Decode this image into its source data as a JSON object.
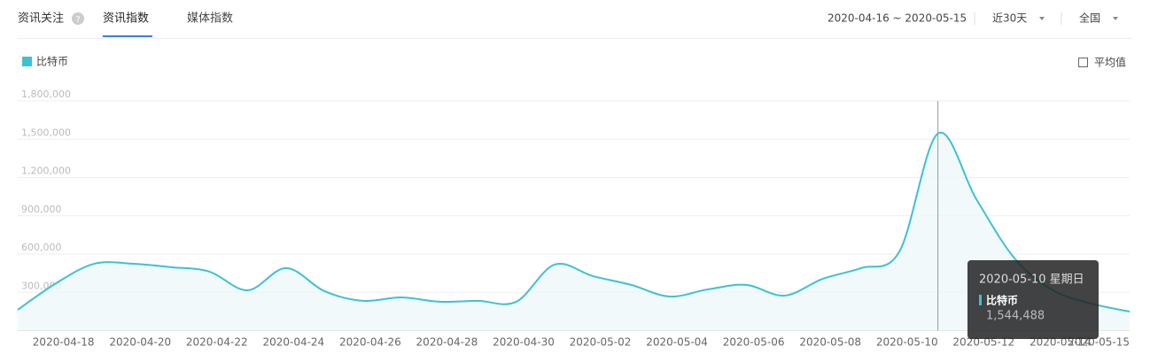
{
  "tabs": {
    "title": "资讯关注",
    "items": [
      "资讯指数",
      "媒体指数"
    ]
  },
  "filters": {
    "date_range": "2020-04-16 ~ 2020-05-15",
    "period": "近30天",
    "region": "全国"
  },
  "average_toggle": "平均值",
  "chart_data": {
    "type": "area",
    "categories": [
      null,
      null,
      "2020-04-18",
      null,
      "2020-04-20",
      null,
      "2020-04-22",
      null,
      "2020-04-24",
      null,
      "2020-04-26",
      null,
      "2020-04-28",
      null,
      "2020-04-30",
      null,
      "2020-05-02",
      null,
      "2020-05-04",
      null,
      "2020-05-06",
      null,
      "2020-05-08",
      null,
      "2020-05-10",
      null,
      "2020-05-12",
      null,
      "2020-05-14",
      "2020-05-15"
    ],
    "series": [
      {
        "name": "比特币",
        "color": "#3ec1d3",
        "values": [
          163000,
          371000,
          524000,
          524000,
          497000,
          462000,
          316000,
          490000,
          309000,
          233000,
          260000,
          226000,
          233000,
          226000,
          517000,
          427000,
          358000,
          267000,
          323000,
          358000,
          274000,
          406000,
          490000,
          622000,
          1544488,
          1031000,
          566000,
          316000,
          212000,
          149000
        ]
      }
    ],
    "ylim": [
      0,
      1800000
    ],
    "yticks": [
      {
        "value": 300000,
        "label": "300,000"
      },
      {
        "value": 600000,
        "label": "600,000"
      },
      {
        "value": 900000,
        "label": "900,000"
      },
      {
        "value": 1200000,
        "label": "1,200,000"
      },
      {
        "value": 1500000,
        "label": "1,500,000"
      },
      {
        "value": 1800000,
        "label": "1,800,000"
      }
    ],
    "grid": true,
    "legend": "top-left",
    "tooltip": {
      "index": 24,
      "title": "2020-05-10 星期日",
      "value_label": "1,544,488"
    }
  }
}
